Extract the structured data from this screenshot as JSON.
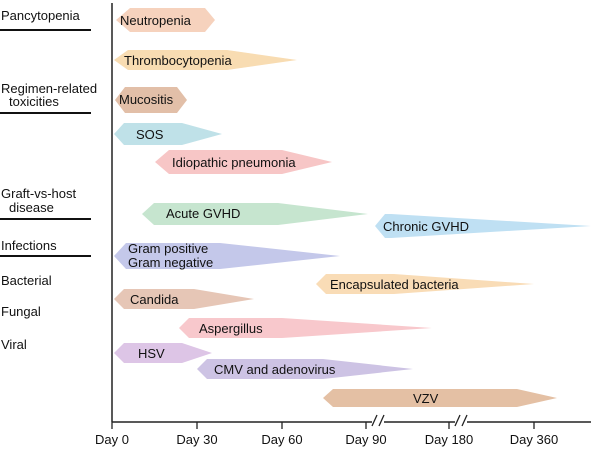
{
  "categories": [
    {
      "label_lines": [
        "Pancytopenia"
      ],
      "underline": true
    },
    {
      "label_lines": [
        "Regimen-related",
        "toxicities"
      ],
      "underline": true
    },
    {
      "label_lines": [
        "Graft-vs-host",
        "disease"
      ],
      "underline": true
    },
    {
      "label_lines": [
        "Infections"
      ],
      "underline": true
    },
    {
      "label_lines": [
        "Bacterial"
      ],
      "underline": false
    },
    {
      "label_lines": [
        "Fungal"
      ],
      "underline": false
    },
    {
      "label_lines": [
        "Viral"
      ],
      "underline": false
    }
  ],
  "x_axis": {
    "ticks": [
      "Day 0",
      "Day 30",
      "Day 60",
      "Day 90",
      "Day 180",
      "Day 360"
    ],
    "breaks": [
      "between Day 90 and Day 180",
      "between Day 180 and Day 360"
    ]
  },
  "bars": [
    {
      "lines": [
        "Neutropenia"
      ],
      "color": "#f6d2bd"
    },
    {
      "lines": [
        "Thrombocytopenia"
      ],
      "color": "#f8dcb2"
    },
    {
      "lines": [
        "Mucositis"
      ],
      "color": "#e2bfa8"
    },
    {
      "lines": [
        "SOS"
      ],
      "color": "#bfe1e8"
    },
    {
      "lines": [
        "Idiopathic pneumonia"
      ],
      "color": "#f7c6c6"
    },
    {
      "lines": [
        "Acute GVHD"
      ],
      "color": "#c6e5cf"
    },
    {
      "lines": [
        "Chronic GVHD"
      ],
      "color": "#bfe0f3"
    },
    {
      "lines": [
        "Gram positive",
        "Gram negative"
      ],
      "color": "#c4c8ea"
    },
    {
      "lines": [
        "Encapsulated bacteria"
      ],
      "color": "#f9dcb6"
    },
    {
      "lines": [
        "Candida"
      ],
      "color": "#e6c6b6"
    },
    {
      "lines": [
        "Aspergillus"
      ],
      "color": "#f8c8cc"
    },
    {
      "lines": [
        "HSV"
      ],
      "color": "#ddc5e6"
    },
    {
      "lines": [
        "CMV and adenovirus"
      ],
      "color": "#cdc3e4"
    },
    {
      "lines": [
        "VZV"
      ],
      "color": "#e4c0a4"
    }
  ]
}
